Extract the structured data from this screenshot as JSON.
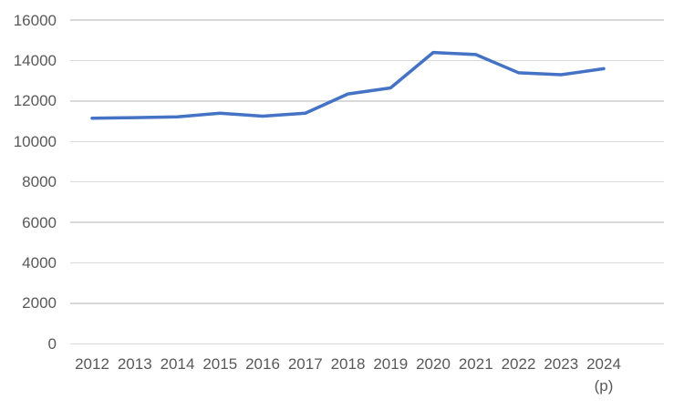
{
  "chart_data": {
    "type": "line",
    "title": "",
    "categories": [
      "2012",
      "2013",
      "2014",
      "2015",
      "2016",
      "2017",
      "2018",
      "2019",
      "2020",
      "2021",
      "2022",
      "2023",
      "2024"
    ],
    "x_suffix_label": "(p)",
    "x_suffix_applies_to": "2024",
    "series": [
      {
        "name": "",
        "values": [
          11150,
          11180,
          11220,
          11400,
          11250,
          11400,
          12350,
          12650,
          14400,
          14300,
          13400,
          13300,
          13600
        ]
      }
    ],
    "xlabel": "",
    "ylabel": "",
    "ylim": [
      0,
      16000
    ],
    "ytick_step": 2000,
    "yticks": [
      0,
      2000,
      4000,
      6000,
      8000,
      10000,
      12000,
      14000,
      16000
    ],
    "grid": true,
    "legend_position": "none",
    "colors": {
      "line": "#4472C4",
      "gridline": "#D9D9D9",
      "axis_label": "#595959",
      "background": "#FFFFFF"
    }
  }
}
